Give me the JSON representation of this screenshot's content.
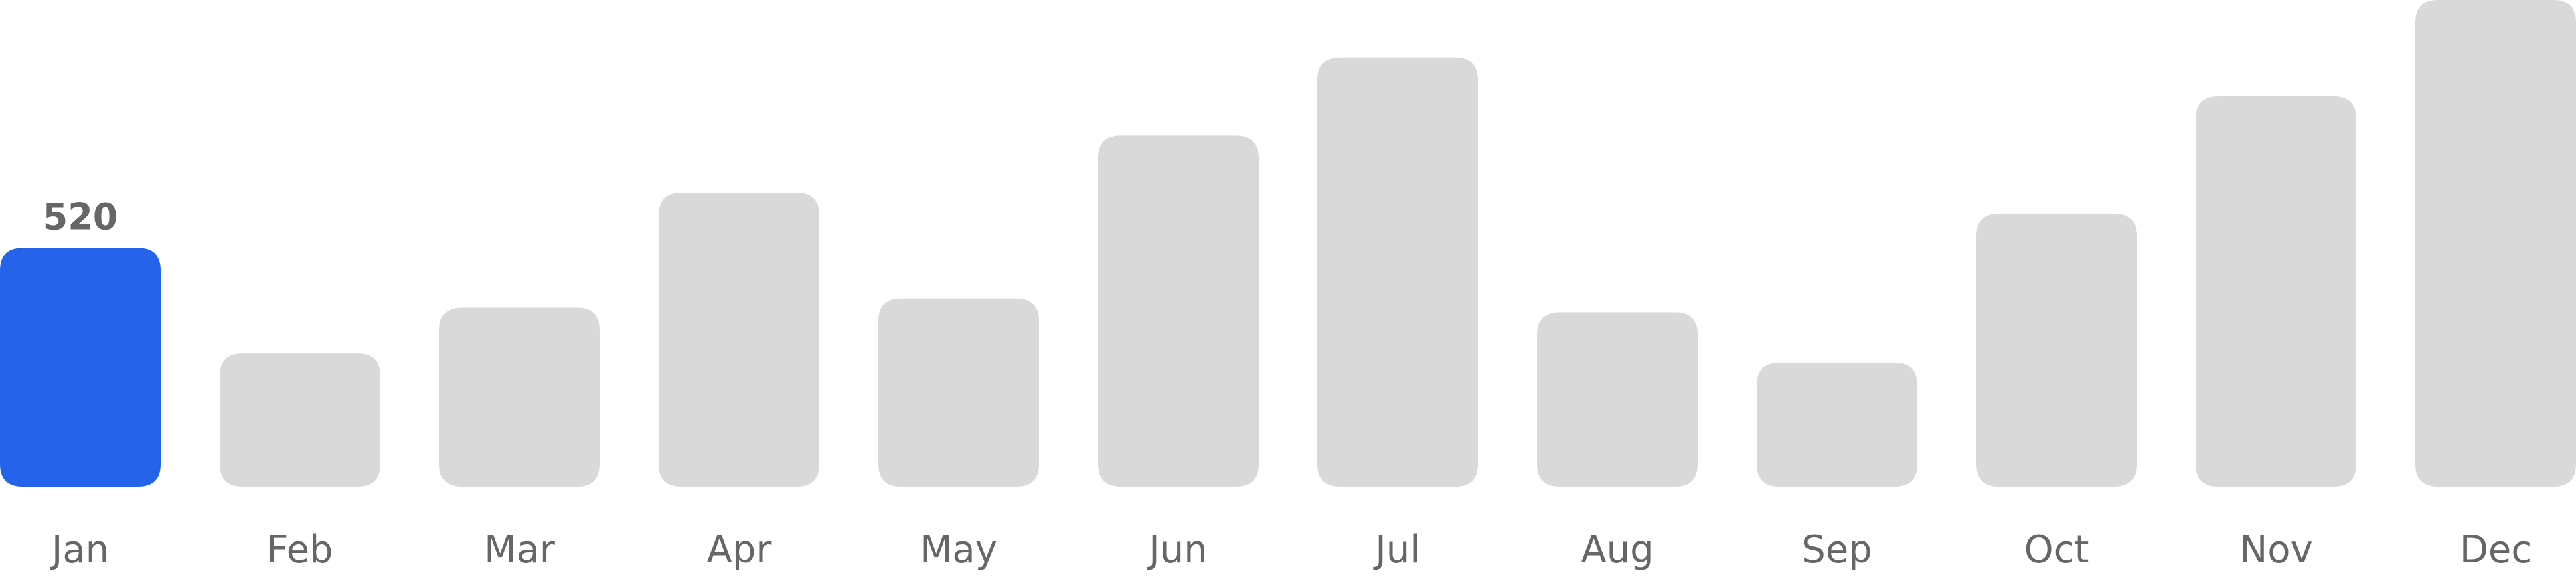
{
  "chart_data": {
    "type": "bar",
    "categories": [
      "Jan",
      "Feb",
      "Mar",
      "Apr",
      "May",
      "Jun",
      "Jul",
      "Aug",
      "Sep",
      "Oct",
      "Nov",
      "Dec"
    ],
    "values": [
      520,
      290,
      390,
      640,
      410,
      765,
      935,
      380,
      270,
      595,
      850,
      1060
    ],
    "highlighted_index": 0,
    "highlighted_value_label": "520",
    "title": "",
    "xlabel": "",
    "ylabel": "",
    "ylim": [
      0,
      1060
    ],
    "grid": false,
    "legend": "none"
  },
  "colors": {
    "highlight_bar": "#2563EB",
    "default_bar": "#D9D9D9",
    "label_text": "#666666",
    "background": "#FFFFFF"
  }
}
